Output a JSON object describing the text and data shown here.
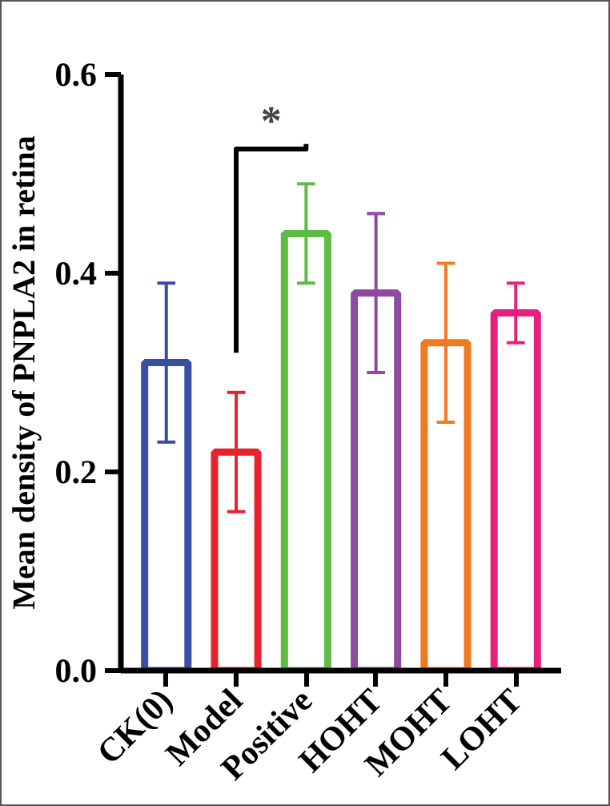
{
  "chart_data": {
    "type": "bar",
    "ylabel": "Mean density of PNPLA2 in retina",
    "categories": [
      "CK(0)",
      "Model",
      "Positive",
      "HOHT",
      "MOHT",
      "LOHT"
    ],
    "values": [
      0.31,
      0.22,
      0.44,
      0.38,
      0.33,
      0.36
    ],
    "errors": [
      [
        0.23,
        0.39
      ],
      [
        0.16,
        0.28
      ],
      [
        0.39,
        0.49
      ],
      [
        0.3,
        0.46
      ],
      [
        0.25,
        0.41
      ],
      [
        0.33,
        0.39
      ]
    ],
    "colors": [
      "#3a4ea3",
      "#e8222d",
      "#5dbb46",
      "#8e4a9f",
      "#f07a22",
      "#e7207e"
    ],
    "ylim": [
      0,
      0.6
    ],
    "yticks": [
      {
        "value": 0,
        "label": "0.0"
      },
      {
        "value": 0.2,
        "label": "0.2"
      },
      {
        "value": 0.4,
        "label": "0.4"
      },
      {
        "value": 0.6,
        "label": "0.6"
      }
    ],
    "annotations": [
      "*"
    ],
    "grid": false
  }
}
